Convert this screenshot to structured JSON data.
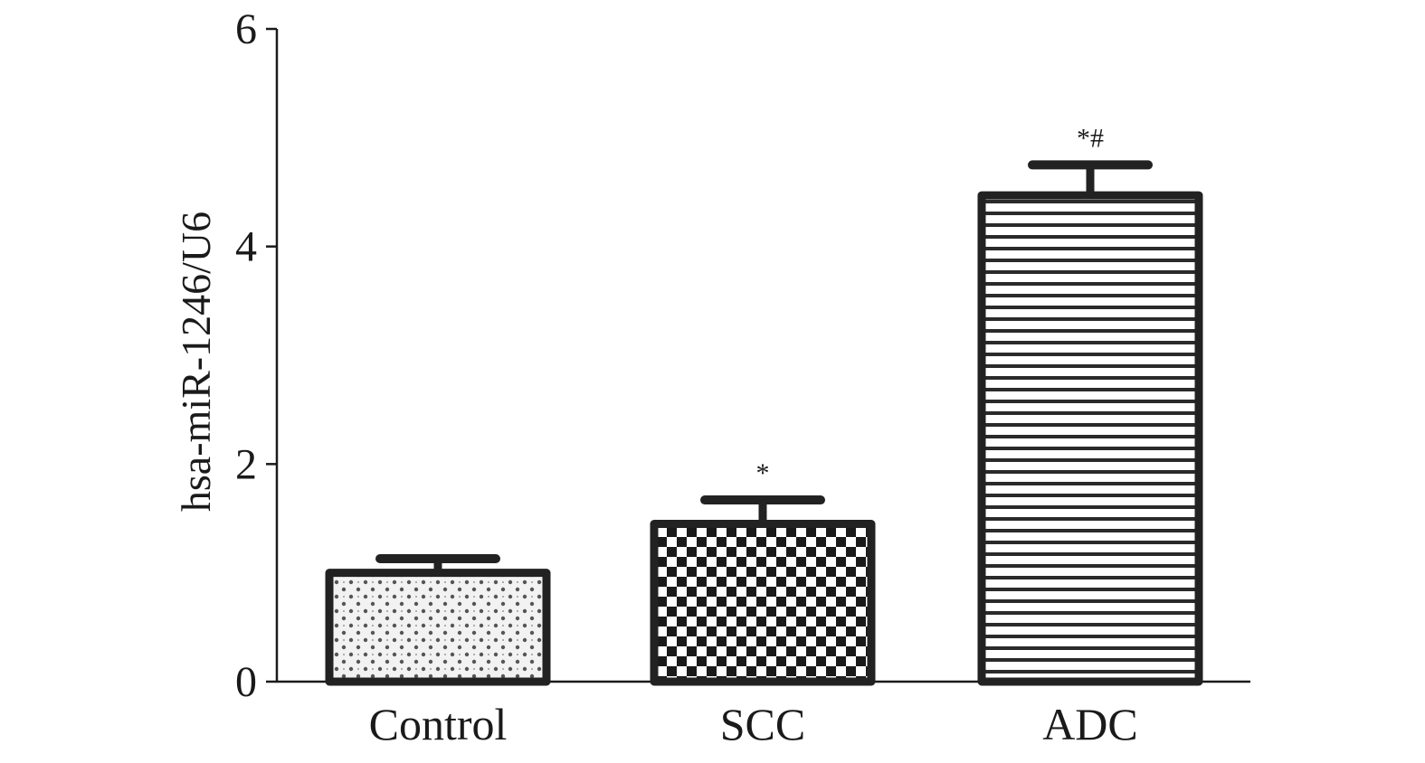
{
  "chart_data": {
    "type": "bar",
    "categories": [
      "Control",
      "SCC",
      "ADC"
    ],
    "values": [
      1.0,
      1.45,
      4.47
    ],
    "errors": [
      0.13,
      0.22,
      0.28
    ],
    "annotations": [
      "",
      "*",
      "*#"
    ],
    "patterns": [
      "dotted",
      "checkered",
      "horizontal-stripes"
    ],
    "title": "",
    "xlabel": "",
    "ylabel": "hsa-miR-1246/U6",
    "ylim": [
      0,
      6
    ],
    "yticks": [
      0,
      2,
      4,
      6
    ],
    "grid": false,
    "colors": {
      "axis": "#1a1a1a",
      "bar_outline": "#222222",
      "bar_fill": "#ffffff"
    }
  }
}
